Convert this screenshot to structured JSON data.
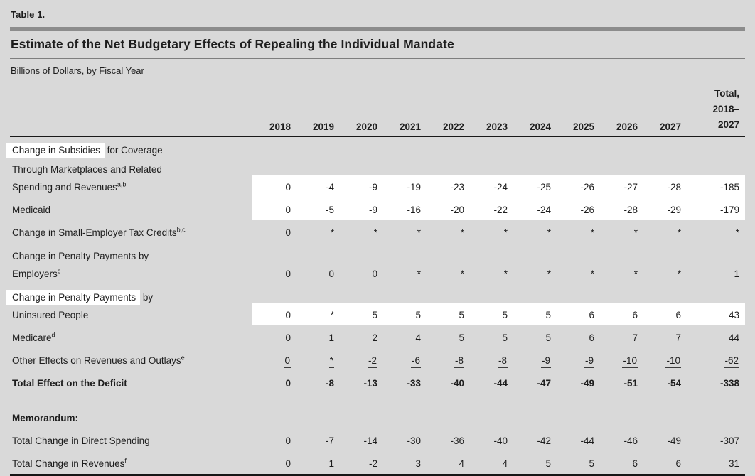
{
  "meta": {
    "table_number": "Table 1.",
    "title": "Estimate of the Net Budgetary Effects of Repealing the Individual Mandate",
    "subtitle": "Billions of Dollars, by Fiscal Year"
  },
  "colors": {
    "page_background": "#d9d9d9",
    "search_highlight": "#ffffff",
    "rule_gray_thick": "#8c8c8c",
    "rule_gray_thin": "#7e7e7e",
    "rule_black": "#1a1a1a",
    "text": "#1d1d1d"
  },
  "chart_data": {
    "type": "table",
    "title": "Estimate of the Net Budgetary Effects of Repealing the Individual Mandate",
    "unit": "Billions of Dollars, by Fiscal Year",
    "year_columns": [
      "2018",
      "2019",
      "2020",
      "2021",
      "2022",
      "2023",
      "2024",
      "2025",
      "2026",
      "2027"
    ],
    "total_column_lines": [
      "Total,",
      "2018–",
      "2027"
    ],
    "rows": [
      {
        "label_lines": [
          {
            "indent": 0,
            "parts": [
              {
                "text": "Change in Subsidies",
                "highlight": true
              },
              {
                "text": " for Coverage"
              }
            ]
          },
          {
            "indent": 1,
            "parts": [
              {
                "text": "Through Marketplaces and Related"
              }
            ]
          },
          {
            "indent": 1,
            "parts": [
              {
                "text": "Spending and Revenues"
              },
              {
                "sup": "a,b"
              }
            ]
          }
        ],
        "values": [
          "0",
          "-4",
          "-9",
          "-19",
          "-23",
          "-24",
          "-25",
          "-26",
          "-27",
          "-28",
          "-185"
        ],
        "highlight_values": true
      },
      {
        "label_lines": [
          {
            "indent": 0,
            "parts": [
              {
                "text": "Medicaid"
              }
            ]
          }
        ],
        "values": [
          "0",
          "-5",
          "-9",
          "-16",
          "-20",
          "-22",
          "-24",
          "-26",
          "-28",
          "-29",
          "-179"
        ],
        "highlight_values": true
      },
      {
        "label_lines": [
          {
            "indent": 0,
            "parts": [
              {
                "text": "Change in Small-Employer Tax Credits"
              },
              {
                "sup": "b,c"
              }
            ]
          }
        ],
        "values": [
          "0",
          "*",
          "*",
          "*",
          "*",
          "*",
          "*",
          "*",
          "*",
          "*",
          "*"
        ]
      },
      {
        "label_lines": [
          {
            "indent": 0,
            "parts": [
              {
                "text": "Change in Penalty Payments by"
              }
            ]
          },
          {
            "indent": 1,
            "parts": [
              {
                "text": "Employers"
              },
              {
                "sup": "c"
              }
            ]
          }
        ],
        "values": [
          "0",
          "0",
          "0",
          "*",
          "*",
          "*",
          "*",
          "*",
          "*",
          "*",
          "1"
        ]
      },
      {
        "label_lines": [
          {
            "indent": 0,
            "parts": [
              {
                "text": "Change in Penalty Payments",
                "highlight": true
              },
              {
                "text": " by"
              }
            ]
          },
          {
            "indent": 1,
            "parts": [
              {
                "text": "Uninsured People"
              }
            ]
          }
        ],
        "values": [
          "0",
          "*",
          "5",
          "5",
          "5",
          "5",
          "5",
          "6",
          "6",
          "6",
          "43"
        ],
        "highlight_values": true
      },
      {
        "label_lines": [
          {
            "indent": 0,
            "parts": [
              {
                "text": "Medicare"
              },
              {
                "sup": "d"
              }
            ]
          }
        ],
        "values": [
          "0",
          "1",
          "2",
          "4",
          "5",
          "5",
          "5",
          "6",
          "7",
          "7",
          "44"
        ]
      },
      {
        "label_lines": [
          {
            "indent": 0,
            "parts": [
              {
                "text": "Other Effects on Revenues and Outlays"
              },
              {
                "sup": "e"
              }
            ]
          }
        ],
        "values": [
          "0",
          "*",
          "-2",
          "-6",
          "-8",
          "-8",
          "-9",
          "-9",
          "-10",
          "-10",
          "-62"
        ],
        "underline_values": true
      },
      {
        "label_lines": [
          {
            "indent": 2,
            "parts": [
              {
                "text": "Total Effect on the Deficit"
              }
            ]
          }
        ],
        "values": [
          "0",
          "-8",
          "-13",
          "-33",
          "-40",
          "-44",
          "-47",
          "-49",
          "-51",
          "-54",
          "-338"
        ],
        "bold": true
      },
      {
        "label_lines": [
          {
            "indent": 0,
            "parts": [
              {
                "text": "Memorandum:"
              }
            ]
          }
        ],
        "section": true,
        "bold": true
      },
      {
        "label_lines": [
          {
            "indent": 0,
            "parts": [
              {
                "text": "Total Change in Direct Spending"
              }
            ]
          }
        ],
        "values": [
          "0",
          "-7",
          "-14",
          "-30",
          "-36",
          "-40",
          "-42",
          "-44",
          "-46",
          "-49",
          "-307"
        ]
      },
      {
        "label_lines": [
          {
            "indent": 0,
            "parts": [
              {
                "text": "Total Change in Revenues"
              },
              {
                "sup": "f"
              }
            ]
          }
        ],
        "values": [
          "0",
          "1",
          "-2",
          "3",
          "4",
          "4",
          "5",
          "5",
          "6",
          "6",
          "31"
        ],
        "last": true
      }
    ]
  }
}
